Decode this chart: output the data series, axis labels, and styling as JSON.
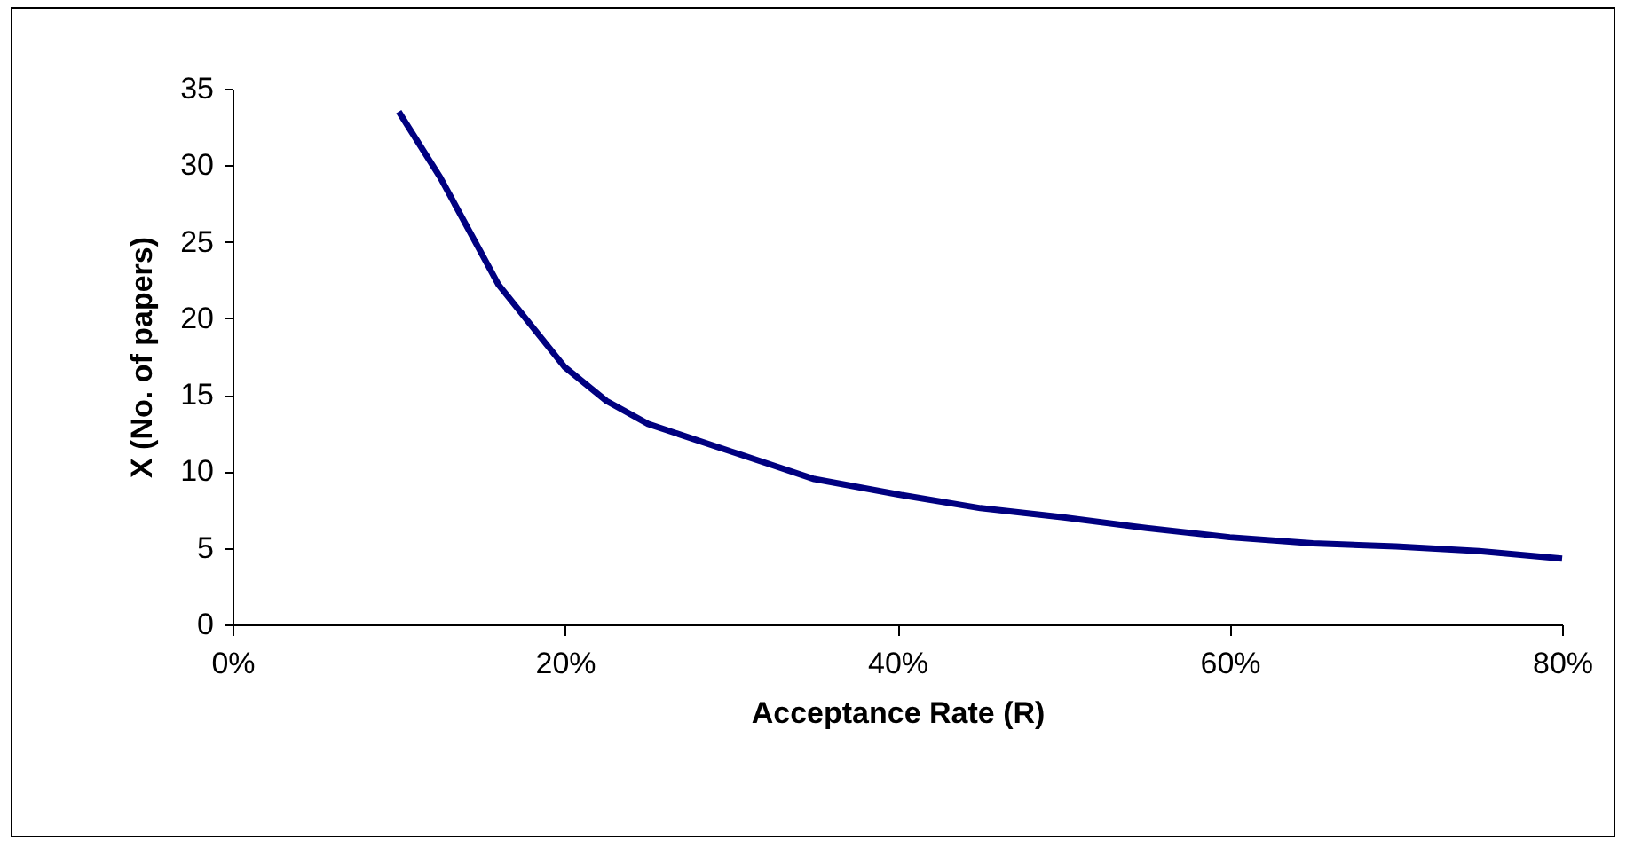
{
  "chart_data": {
    "type": "line",
    "xlabel": "Acceptance Rate (R)",
    "ylabel": "X (No. of papers)",
    "x": [
      10,
      12.5,
      16,
      20,
      22.5,
      25,
      30,
      32.5,
      35,
      40,
      45,
      50,
      55,
      60,
      65,
      70,
      75,
      80
    ],
    "series": [
      {
        "color": "#000080",
        "values": [
          33.5,
          29.2,
          22.2,
          16.8,
          14.6,
          13.1,
          11.3,
          10.4,
          9.5,
          8.5,
          7.6,
          7.0,
          6.3,
          5.7,
          5.3,
          5.1,
          4.8,
          4.3
        ]
      }
    ],
    "xlim": [
      0,
      80
    ],
    "xticks": [
      {
        "value": 0,
        "label": "0%"
      },
      {
        "value": 20,
        "label": "20%"
      },
      {
        "value": 40,
        "label": "40%"
      },
      {
        "value": 60,
        "label": "60%"
      },
      {
        "value": 80,
        "label": "80%"
      }
    ],
    "ylim": [
      0,
      35
    ],
    "yticks": [
      0,
      5,
      10,
      15,
      20,
      25,
      30,
      35
    ],
    "grid": false,
    "legend": false,
    "marker": "none",
    "line_style": "solid"
  }
}
